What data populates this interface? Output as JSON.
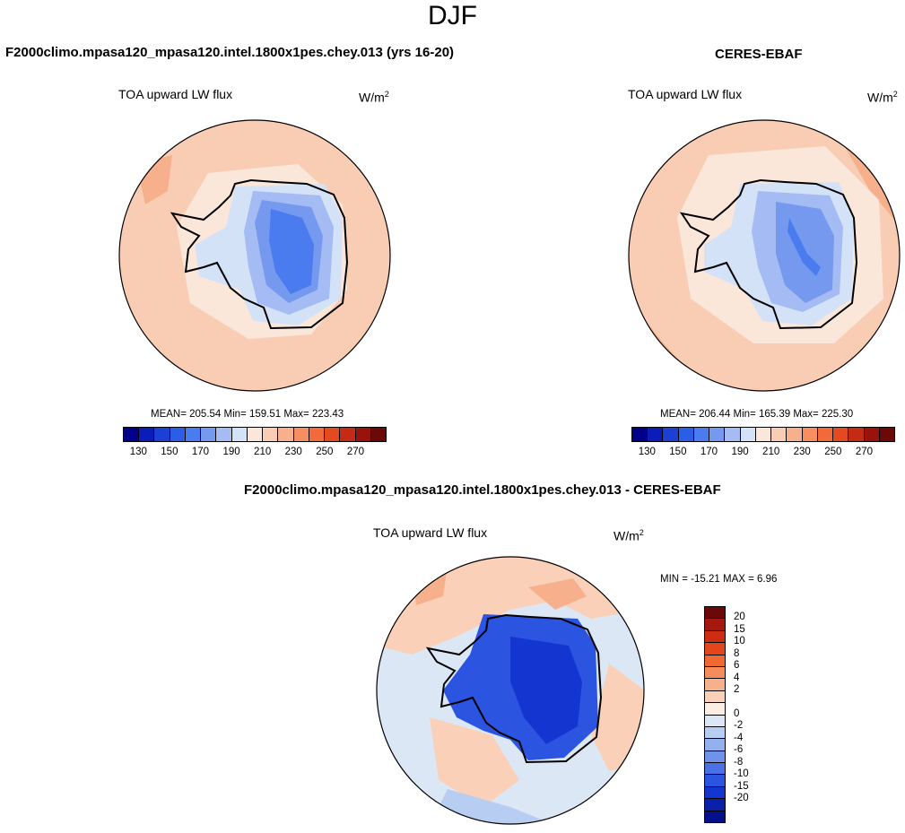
{
  "season": "DJF",
  "panels": [
    {
      "title": "F2000climo.mpasa120_mpasa120.intel.1800x1pes.chey.013 (yrs 16-20)",
      "variable": "TOA upward LW flux",
      "units": "W/m",
      "units_exp": "2",
      "stats": "MEAN= 205.54  Min= 159.51  Max= 223.43"
    },
    {
      "title": "CERES-EBAF",
      "variable": "TOA upward LW flux",
      "units": "W/m",
      "units_exp": "2",
      "stats": "MEAN= 206.44  Min= 165.39  Max= 225.30"
    },
    {
      "title": "F2000climo.mpasa120_mpasa120.intel.1800x1pes.chey.013 - CERES-EBAF",
      "variable": "TOA upward LW flux",
      "units": "W/m",
      "units_exp": "2",
      "stats": "MIN = -15.21 MAX =   6.96"
    }
  ],
  "colorbar_abs": {
    "colors": [
      "#00008b",
      "#0a1db8",
      "#1c3fd6",
      "#2a5ee6",
      "#4a7cf0",
      "#7499ee",
      "#a4bcf3",
      "#d4e2f8",
      "#fbe7da",
      "#f9cdb3",
      "#f7b08c",
      "#f78e62",
      "#f2693a",
      "#e44a1f",
      "#c52a14",
      "#99120c",
      "#6b0808"
    ],
    "tick_labels": [
      "130",
      "150",
      "170",
      "190",
      "210",
      "230",
      "250",
      "270"
    ]
  },
  "colorbar_diff": {
    "colors": [
      "#6b0808",
      "#a6170e",
      "#cd2d12",
      "#e4461c",
      "#f06932",
      "#f58c5c",
      "#f7b08c",
      "#fad1b8",
      "#fdeee3",
      "#dce7f6",
      "#b8cdf2",
      "#93b1ee",
      "#6f93ea",
      "#4a72e6",
      "#2b55e0",
      "#1435d0",
      "#0a20aa",
      "#03108a"
    ],
    "tick_labels": [
      "20",
      "15",
      "10",
      "8",
      "6",
      "4",
      "2",
      "0",
      "-2",
      "-4",
      "-6",
      "-8",
      "-10",
      "-15",
      "-20"
    ]
  },
  "map_colors": {
    "ocean_abs": "#f9cdb3",
    "ocean_abs_light": "#fbe7da",
    "ocean_abs_dark": "#f7b08c",
    "ice_light": "#d4e2f8",
    "ice_mid": "#a4bcf3",
    "ice_mid2": "#7499ee",
    "ice_dark": "#4a7cf0",
    "diff_ocean": "#dce7f6",
    "diff_pos": "#fad1b8",
    "diff_pos2": "#f7b08c",
    "diff_neg": "#b8cdf2",
    "diff_ice": "#2b55e0",
    "diff_ice2": "#1435d0"
  }
}
